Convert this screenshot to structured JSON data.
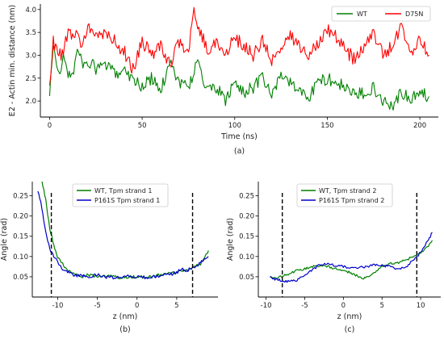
{
  "chart_data": [
    {
      "id": "a",
      "type": "line",
      "panel_label": "(a)",
      "xlabel": "Time (ns)",
      "ylabel": "E2 - Actin min. distance (nm)",
      "xlim": [
        -5,
        210
      ],
      "ylim": [
        1.65,
        4.12
      ],
      "xticks": [
        0,
        50,
        100,
        150,
        200
      ],
      "yticks": [
        2.0,
        2.5,
        3.0,
        3.5,
        4.0
      ],
      "ytick_labels": [
        "2.0",
        "2.5",
        "3.0",
        "3.5",
        "4.0"
      ],
      "legend": {
        "placement": "top-right",
        "columns": 2
      },
      "series": [
        {
          "name": "WT",
          "color": "#008000",
          "x": [
            0,
            2,
            5,
            8,
            10,
            13,
            15,
            18,
            20,
            25,
            30,
            35,
            40,
            45,
            50,
            55,
            60,
            65,
            70,
            75,
            80,
            85,
            90,
            95,
            100,
            105,
            110,
            115,
            120,
            125,
            130,
            135,
            140,
            145,
            150,
            155,
            160,
            165,
            170,
            175,
            180,
            185,
            190,
            195,
            200,
            205
          ],
          "y": [
            2.1,
            3.2,
            2.6,
            3.0,
            2.5,
            2.7,
            3.1,
            2.8,
            2.9,
            2.7,
            2.8,
            2.6,
            2.7,
            2.5,
            2.3,
            2.5,
            2.2,
            2.9,
            2.4,
            2.3,
            2.9,
            2.2,
            2.3,
            2.0,
            2.4,
            2.2,
            2.3,
            2.5,
            2.1,
            2.6,
            2.4,
            2.2,
            2.1,
            2.4,
            2.5,
            2.4,
            2.3,
            2.1,
            2.2,
            2.3,
            2.0,
            1.9,
            2.2,
            2.0,
            2.2,
            2.1
          ],
          "jitter": 0.14
        },
        {
          "name": "D75N",
          "color": "#ff0000",
          "x": [
            0,
            2,
            5,
            8,
            10,
            13,
            15,
            18,
            20,
            25,
            30,
            35,
            40,
            45,
            50,
            55,
            60,
            65,
            70,
            75,
            78,
            80,
            85,
            90,
            95,
            100,
            105,
            110,
            115,
            120,
            125,
            130,
            135,
            140,
            145,
            150,
            155,
            160,
            165,
            170,
            175,
            180,
            185,
            190,
            195,
            200,
            205
          ],
          "y": [
            2.4,
            3.3,
            3.0,
            3.1,
            3.6,
            3.4,
            3.5,
            3.2,
            3.6,
            3.4,
            3.5,
            3.3,
            3.1,
            2.7,
            3.3,
            3.0,
            3.2,
            2.8,
            3.3,
            3.1,
            3.9,
            3.7,
            3.1,
            3.3,
            3.0,
            3.4,
            3.2,
            3.0,
            3.3,
            2.9,
            3.1,
            3.4,
            3.2,
            3.0,
            3.3,
            3.6,
            3.4,
            3.1,
            2.9,
            3.2,
            3.5,
            3.0,
            3.2,
            3.6,
            3.1,
            3.3,
            3.0
          ],
          "jitter": 0.15
        }
      ]
    },
    {
      "id": "b",
      "type": "line",
      "panel_label": "(b)",
      "xlabel": "z (nm)",
      "ylabel": "Angle (rad)",
      "xlim": [
        -13.2,
        10.2
      ],
      "ylim": [
        0,
        0.285
      ],
      "xticks": [
        -10,
        -5,
        0,
        5
      ],
      "yticks": [
        0.05,
        0.1,
        0.15,
        0.2,
        0.25
      ],
      "ytick_labels": [
        "0.05",
        "0.10",
        "0.15",
        "0.20",
        "0.25"
      ],
      "vlines": [
        -10.8,
        7.0
      ],
      "legend": {
        "placement": "top-center",
        "columns": 1
      },
      "series": [
        {
          "name": "WT, Tpm strand 1",
          "color": "#008000",
          "x": [
            -12.0,
            -11.5,
            -11.0,
            -10.5,
            -10.0,
            -9.5,
            -9.0,
            -8.5,
            -8.0,
            -7.5,
            -7.0,
            -6.0,
            -5.0,
            -4.0,
            -3.0,
            -2.0,
            -1.0,
            0.0,
            1.0,
            2.0,
            3.0,
            4.0,
            5.0,
            6.0,
            7.0,
            8.0,
            8.5,
            9.0
          ],
          "y": [
            0.29,
            0.24,
            0.17,
            0.13,
            0.1,
            0.085,
            0.07,
            0.065,
            0.058,
            0.052,
            0.05,
            0.055,
            0.05,
            0.052,
            0.05,
            0.048,
            0.05,
            0.05,
            0.048,
            0.05,
            0.055,
            0.058,
            0.06,
            0.065,
            0.072,
            0.082,
            0.095,
            0.115
          ],
          "jitter": 0.004
        },
        {
          "name": "P161S Tpm strand 1",
          "color": "#0000cc",
          "x": [
            -12.5,
            -12.0,
            -11.5,
            -11.0,
            -10.5,
            -10.0,
            -9.5,
            -9.0,
            -8.5,
            -8.0,
            -7.0,
            -6.0,
            -5.0,
            -4.0,
            -3.0,
            -2.0,
            -1.0,
            0.0,
            1.0,
            2.0,
            3.0,
            4.0,
            5.0,
            5.5,
            6.0,
            7.0,
            8.0,
            9.0
          ],
          "y": [
            0.265,
            0.22,
            0.16,
            0.12,
            0.1,
            0.085,
            0.072,
            0.065,
            0.06,
            0.055,
            0.052,
            0.05,
            0.055,
            0.05,
            0.048,
            0.05,
            0.052,
            0.05,
            0.048,
            0.05,
            0.052,
            0.055,
            0.06,
            0.07,
            0.065,
            0.07,
            0.085,
            0.1
          ],
          "jitter": 0.004
        }
      ]
    },
    {
      "id": "c",
      "type": "line",
      "panel_label": "(c)",
      "xlabel": "z (nm)",
      "ylabel": "Angle (rad)",
      "xlim": [
        -11,
        12.6
      ],
      "ylim": [
        0,
        0.285
      ],
      "xticks": [
        -10,
        -5,
        0,
        5,
        10
      ],
      "yticks": [
        0.05,
        0.1,
        0.15,
        0.2,
        0.25
      ],
      "ytick_labels": [
        "0.05",
        "0.10",
        "0.15",
        "0.20",
        "0.25"
      ],
      "vlines": [
        -7.9,
        9.5
      ],
      "legend": {
        "placement": "top-center",
        "columns": 1
      },
      "series": [
        {
          "name": "WT, Tpm strand 2",
          "color": "#008000",
          "x": [
            -9.5,
            -9.0,
            -8.0,
            -7.0,
            -6.0,
            -5.0,
            -4.0,
            -3.0,
            -2.0,
            -1.0,
            0.0,
            1.0,
            2.0,
            2.5,
            3.0,
            4.0,
            5.0,
            6.0,
            7.0,
            8.0,
            9.0,
            10.0,
            11.0,
            11.5
          ],
          "y": [
            0.05,
            0.045,
            0.05,
            0.058,
            0.065,
            0.07,
            0.075,
            0.078,
            0.075,
            0.07,
            0.065,
            0.06,
            0.05,
            0.045,
            0.05,
            0.06,
            0.075,
            0.082,
            0.085,
            0.09,
            0.1,
            0.11,
            0.125,
            0.14
          ],
          "jitter": 0.003
        },
        {
          "name": "P161S Tpm strand 2",
          "color": "#0000cc",
          "x": [
            -9.5,
            -9.0,
            -8.0,
            -7.0,
            -6.0,
            -5.0,
            -4.0,
            -3.0,
            -2.0,
            -1.0,
            0.0,
            1.0,
            2.0,
            3.0,
            4.0,
            5.0,
            6.0,
            7.0,
            8.0,
            9.0,
            10.0,
            11.0,
            11.5
          ],
          "y": [
            0.052,
            0.045,
            0.04,
            0.038,
            0.042,
            0.055,
            0.068,
            0.08,
            0.082,
            0.078,
            0.075,
            0.07,
            0.072,
            0.075,
            0.08,
            0.078,
            0.075,
            0.07,
            0.072,
            0.09,
            0.11,
            0.14,
            0.16
          ],
          "jitter": 0.003
        }
      ]
    }
  ]
}
